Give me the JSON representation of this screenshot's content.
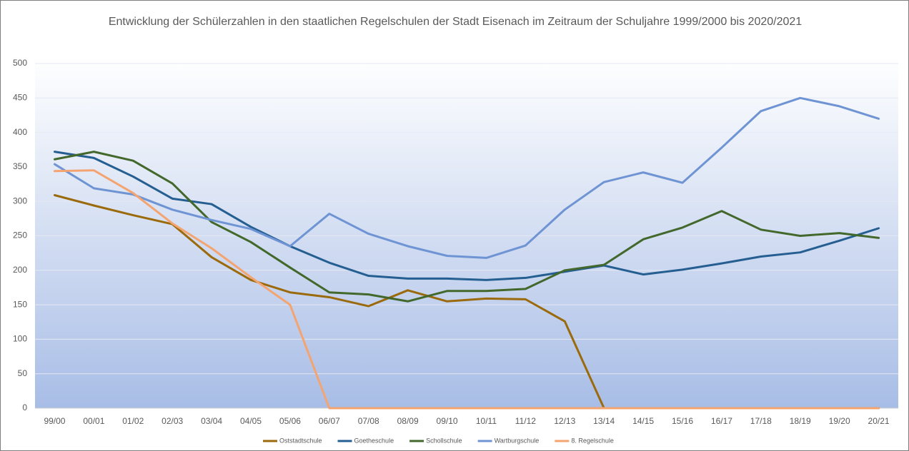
{
  "chart_data": {
    "type": "line",
    "title": "Entwicklung der Schülerzahlen in den staatlichen Regelschulen der Stadt Eisenach im Zeitraum der Schuljahre 1999/2000 bis 2020/2021",
    "categories": [
      "99/00",
      "00/01",
      "01/02",
      "02/03",
      "03/04",
      "04/05",
      "05/06",
      "06/07",
      "07/08",
      "08/09",
      "09/10",
      "10/11",
      "11/12",
      "12/13",
      "13/14",
      "14/15",
      "15/16",
      "16/17",
      "17/18",
      "18/19",
      "19/20",
      "20/21"
    ],
    "series": [
      {
        "name": "Oststadtschule",
        "color": "#9a6a0c",
        "values": [
          309,
          294,
          280,
          267,
          219,
          186,
          168,
          161,
          148,
          171,
          155,
          159,
          158,
          126,
          0,
          0,
          0,
          0,
          0,
          0,
          0,
          0
        ]
      },
      {
        "name": "Goetheschule",
        "color": "#255e91",
        "values": [
          372,
          363,
          336,
          304,
          296,
          263,
          235,
          211,
          192,
          188,
          188,
          186,
          189,
          198,
          207,
          194,
          201,
          210,
          220,
          226,
          243,
          261
        ]
      },
      {
        "name": "Schollschule",
        "color": "#43682b",
        "values": [
          361,
          372,
          359,
          326,
          270,
          241,
          204,
          168,
          165,
          155,
          170,
          170,
          173,
          200,
          208,
          245,
          262,
          286,
          259,
          250,
          254,
          247
        ]
      },
      {
        "name": "Wartburgschule",
        "color": "#6f94d4",
        "values": [
          354,
          319,
          310,
          288,
          273,
          260,
          235,
          282,
          253,
          235,
          221,
          218,
          236,
          288,
          328,
          342,
          327,
          378,
          431,
          450,
          438,
          420
        ]
      },
      {
        "name": "8. Regelschule",
        "color": "#f4a470",
        "values": [
          344,
          345,
          312,
          268,
          232,
          190,
          150,
          0,
          0,
          0,
          0,
          0,
          0,
          0,
          0,
          0,
          0,
          0,
          0,
          0,
          0,
          0
        ]
      }
    ],
    "ylim": [
      0,
      500
    ],
    "yticks": [
      0,
      50,
      100,
      150,
      200,
      250,
      300,
      350,
      400,
      450,
      500
    ],
    "grid": true,
    "legend": "bottom"
  }
}
